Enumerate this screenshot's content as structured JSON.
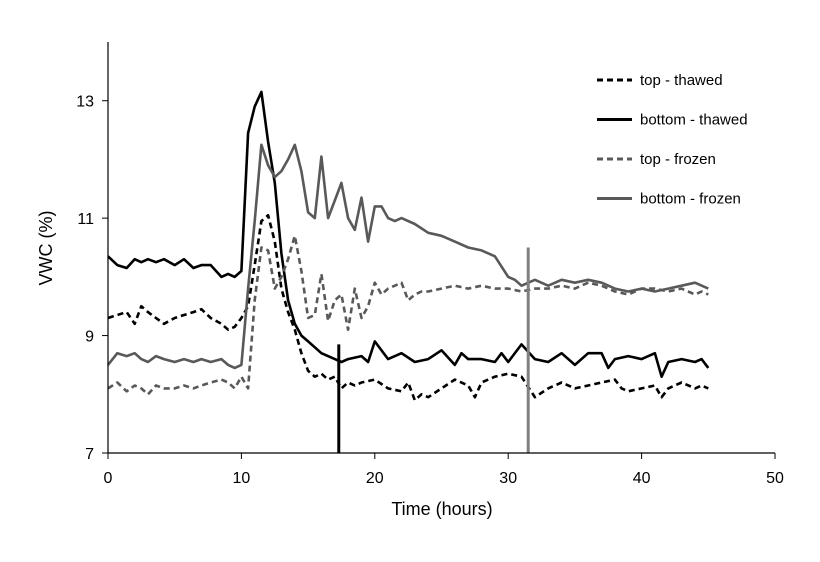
{
  "chart_data": {
    "type": "line",
    "title": "",
    "xlabel": "Time (hours)",
    "ylabel": "VWC (%)",
    "xlim": [
      0,
      50
    ],
    "ylim": [
      7,
      14
    ],
    "x_ticks": [
      0,
      10,
      20,
      30,
      40,
      50
    ],
    "y_ticks": [
      7,
      9,
      11,
      13
    ],
    "grid": false,
    "legend_position": "top-right",
    "series": [
      {
        "name": "top - thawed",
        "color": "#000000",
        "dash": "dashed",
        "x": [
          0,
          0.7,
          1.4,
          2,
          2.5,
          3,
          3.6,
          4.2,
          5,
          5.7,
          6.4,
          7,
          7.7,
          8.5,
          9,
          9.5,
          10,
          10.5,
          11,
          11.5,
          12,
          12.5,
          13,
          13.5,
          14,
          14.5,
          15,
          15.5,
          16,
          16.5,
          17,
          17.5,
          18,
          18.5,
          19,
          20,
          21,
          22,
          22.5,
          23,
          23.5,
          24,
          25,
          26,
          27,
          27.5,
          28,
          29,
          30,
          31,
          32,
          33,
          34,
          35,
          36,
          37,
          38,
          38.5,
          39,
          40,
          41,
          41.5,
          42,
          43,
          44,
          44.5,
          45
        ],
        "y": [
          9.3,
          9.35,
          9.4,
          9.2,
          9.5,
          9.4,
          9.3,
          9.2,
          9.3,
          9.35,
          9.4,
          9.45,
          9.3,
          9.2,
          9.1,
          9.15,
          9.3,
          9.5,
          10.2,
          10.95,
          11.05,
          10.6,
          9.8,
          9.4,
          9.1,
          8.7,
          8.4,
          8.3,
          8.35,
          8.25,
          8.3,
          8.1,
          8.2,
          8.15,
          8.2,
          8.25,
          8.1,
          8.05,
          8.2,
          7.9,
          8.0,
          7.95,
          8.1,
          8.25,
          8.15,
          7.95,
          8.2,
          8.3,
          8.35,
          8.3,
          7.95,
          8.1,
          8.2,
          8.1,
          8.15,
          8.2,
          8.25,
          8.1,
          8.05,
          8.1,
          8.15,
          7.95,
          8.1,
          8.2,
          8.1,
          8.15,
          8.1
        ]
      },
      {
        "name": "bottom - thawed",
        "color": "#000000",
        "dash": "solid",
        "x": [
          0,
          0.7,
          1.4,
          2,
          2.5,
          3,
          3.6,
          4.2,
          5,
          5.7,
          6.4,
          7,
          7.7,
          8.5,
          9,
          9.5,
          10,
          10.5,
          11,
          11.5,
          12,
          12.5,
          13,
          13.5,
          14,
          14.5,
          15,
          15.5,
          16,
          17,
          17.5,
          18,
          19,
          19.5,
          20,
          21,
          22,
          23,
          24,
          25,
          26,
          26.5,
          27,
          28,
          29,
          29.5,
          30,
          31,
          32,
          33,
          34,
          35,
          36,
          37,
          37.5,
          38,
          39,
          40,
          41,
          41.5,
          42,
          43,
          44,
          44.5,
          45
        ],
        "y": [
          10.35,
          10.2,
          10.15,
          10.3,
          10.25,
          10.3,
          10.25,
          10.3,
          10.2,
          10.3,
          10.15,
          10.2,
          10.2,
          10.0,
          10.05,
          10.0,
          10.1,
          12.45,
          12.9,
          13.15,
          12.3,
          11.6,
          10.4,
          9.6,
          9.2,
          9.0,
          8.9,
          8.8,
          8.7,
          8.6,
          8.55,
          8.6,
          8.65,
          8.55,
          8.9,
          8.6,
          8.7,
          8.55,
          8.6,
          8.75,
          8.5,
          8.7,
          8.6,
          8.6,
          8.55,
          8.7,
          8.55,
          8.85,
          8.6,
          8.55,
          8.7,
          8.5,
          8.7,
          8.7,
          8.45,
          8.6,
          8.65,
          8.6,
          8.7,
          8.3,
          8.55,
          8.6,
          8.55,
          8.6,
          8.45
        ]
      },
      {
        "name": "top - frozen",
        "color": "#595959",
        "dash": "dashed",
        "x": [
          0,
          0.7,
          1.4,
          2,
          2.5,
          3,
          3.6,
          4.2,
          5,
          5.7,
          6.4,
          7,
          7.7,
          8.5,
          9,
          9.5,
          10,
          10.5,
          11,
          11.5,
          12,
          12.5,
          13,
          13.5,
          14,
          14.5,
          15,
          15.5,
          16,
          16.5,
          17,
          17.5,
          18,
          18.5,
          19,
          19.5,
          20,
          20.5,
          21,
          21.5,
          22,
          22.5,
          23,
          23.5,
          24,
          25,
          26,
          27,
          28,
          29,
          30,
          31,
          32,
          33,
          34,
          35,
          36,
          37,
          38,
          39,
          40,
          41,
          42,
          43,
          44,
          44.5,
          45
        ],
        "y": [
          8.1,
          8.2,
          8.05,
          8.15,
          8.1,
          8.0,
          8.15,
          8.1,
          8.1,
          8.15,
          8.1,
          8.15,
          8.2,
          8.25,
          8.2,
          8.1,
          8.3,
          8.1,
          9.6,
          10.5,
          10.45,
          9.8,
          10.0,
          10.3,
          10.7,
          10.1,
          9.3,
          9.35,
          10.05,
          9.25,
          9.6,
          9.7,
          9.1,
          9.8,
          9.3,
          9.5,
          9.9,
          9.7,
          9.8,
          9.85,
          9.9,
          9.6,
          9.7,
          9.75,
          9.75,
          9.8,
          9.85,
          9.8,
          9.85,
          9.8,
          9.8,
          9.75,
          9.8,
          9.8,
          9.85,
          9.8,
          9.9,
          9.85,
          9.75,
          9.7,
          9.8,
          9.8,
          9.75,
          9.8,
          9.7,
          9.75,
          9.7
        ]
      },
      {
        "name": "bottom - frozen",
        "color": "#595959",
        "dash": "solid",
        "x": [
          0,
          0.7,
          1.4,
          2,
          2.5,
          3,
          3.6,
          4.2,
          5,
          5.7,
          6.4,
          7,
          7.7,
          8.5,
          9,
          9.5,
          10,
          10.5,
          11,
          11.5,
          12,
          12.5,
          13,
          13.5,
          14,
          14.5,
          15,
          15.5,
          16,
          16.5,
          17,
          17.5,
          18,
          18.5,
          19,
          19.5,
          20,
          20.5,
          21,
          21.5,
          22,
          23,
          24,
          25,
          26,
          27,
          28,
          29,
          30,
          30.5,
          31,
          32,
          33,
          34,
          35,
          36,
          37,
          38,
          39,
          40,
          41,
          42,
          43,
          44,
          45
        ],
        "y": [
          8.5,
          8.7,
          8.65,
          8.7,
          8.6,
          8.55,
          8.65,
          8.6,
          8.55,
          8.6,
          8.55,
          8.6,
          8.55,
          8.6,
          8.5,
          8.45,
          8.5,
          9.8,
          10.95,
          12.25,
          11.9,
          11.7,
          11.8,
          12.0,
          12.25,
          11.8,
          11.1,
          11.0,
          12.05,
          11.0,
          11.3,
          11.6,
          11.0,
          10.8,
          11.35,
          10.6,
          11.2,
          11.2,
          11.0,
          10.95,
          11.0,
          10.9,
          10.75,
          10.7,
          10.6,
          10.5,
          10.45,
          10.35,
          10.0,
          9.95,
          9.85,
          9.95,
          9.85,
          9.95,
          9.9,
          9.95,
          9.9,
          9.8,
          9.75,
          9.8,
          9.75,
          9.8,
          9.85,
          9.9,
          9.8
        ]
      }
    ],
    "annotations": [
      {
        "type": "vertical-marker",
        "x": 17.3,
        "y_top": 8.85,
        "color": "#000000"
      },
      {
        "type": "vertical-marker",
        "x": 31.5,
        "y_top": 10.5,
        "color": "#808080"
      }
    ]
  }
}
